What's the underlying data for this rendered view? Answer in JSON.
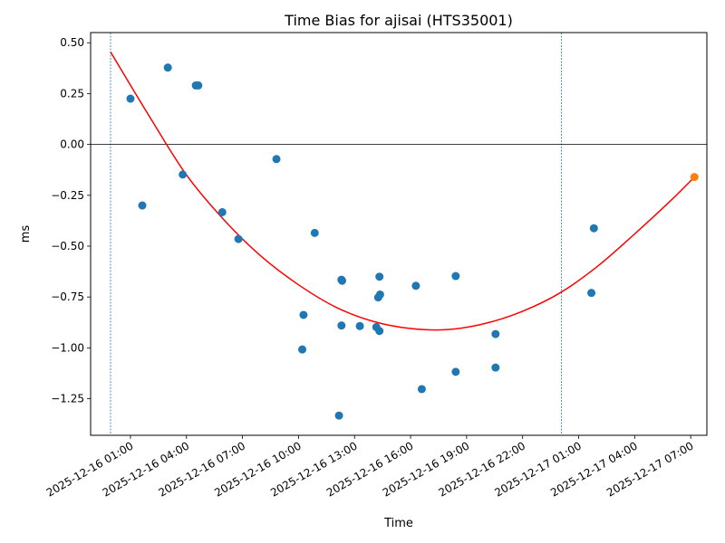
{
  "chart_data": {
    "type": "scatter",
    "title": "Time Bias for ajisai (HTS35001)",
    "xlabel": "Time",
    "ylabel": "ms",
    "x_axis_type": "datetime",
    "x_ticks": [
      "2025-12-16 01:00",
      "2025-12-16 04:00",
      "2025-12-16 07:00",
      "2025-12-16 10:00",
      "2025-12-16 13:00",
      "2025-12-16 16:00",
      "2025-12-16 19:00",
      "2025-12-16 22:00",
      "2025-12-17 01:00",
      "2025-12-17 04:00",
      "2025-12-17 07:00"
    ],
    "y_ticks": [
      0.5,
      0.25,
      0.0,
      -0.25,
      -0.5,
      -0.75,
      -1.0,
      -1.25
    ],
    "y_tick_labels": [
      "0.50",
      "0.25",
      "0.00",
      "−0.25",
      "−0.50",
      "−0.75",
      "−1.00",
      "−1.25"
    ],
    "xlim": [
      "2025-12-15 22:52",
      "2025-12-17 07:52"
    ],
    "ylim": [
      -1.43,
      0.55
    ],
    "grid": false,
    "series": [
      {
        "color": "#1f77b4",
        "points": [
          {
            "x": "2025-12-16 01:00",
            "y": 0.225
          },
          {
            "x": "2025-12-16 01:38",
            "y": -0.3
          },
          {
            "x": "2025-12-16 03:00",
            "y": 0.378
          },
          {
            "x": "2025-12-16 03:48",
            "y": -0.148
          },
          {
            "x": "2025-12-16 04:30",
            "y": 0.29
          },
          {
            "x": "2025-12-16 04:38",
            "y": 0.29
          },
          {
            "x": "2025-12-16 05:55",
            "y": -0.333
          },
          {
            "x": "2025-12-16 06:47",
            "y": -0.465
          },
          {
            "x": "2025-12-16 08:49",
            "y": -0.072
          },
          {
            "x": "2025-12-16 10:12",
            "y": -1.008
          },
          {
            "x": "2025-12-16 10:16",
            "y": -0.838
          },
          {
            "x": "2025-12-16 10:52",
            "y": -0.435
          },
          {
            "x": "2025-12-16 12:10",
            "y": -1.333
          },
          {
            "x": "2025-12-16 12:18",
            "y": -0.665
          },
          {
            "x": "2025-12-16 12:20",
            "y": -0.67
          },
          {
            "x": "2025-12-16 12:18",
            "y": -0.89
          },
          {
            "x": "2025-12-16 13:17",
            "y": -0.893
          },
          {
            "x": "2025-12-16 14:10",
            "y": -0.898
          },
          {
            "x": "2025-12-16 14:20",
            "y": -0.917
          },
          {
            "x": "2025-12-16 14:16",
            "y": -0.752
          },
          {
            "x": "2025-12-16 14:22",
            "y": -0.738
          },
          {
            "x": "2025-12-16 14:20",
            "y": -0.65
          },
          {
            "x": "2025-12-16 16:17",
            "y": -0.695
          },
          {
            "x": "2025-12-16 16:36",
            "y": -1.203
          },
          {
            "x": "2025-12-16 18:25",
            "y": -0.647
          },
          {
            "x": "2025-12-16 18:25",
            "y": -1.118
          },
          {
            "x": "2025-12-16 20:33",
            "y": -0.932
          },
          {
            "x": "2025-12-16 20:33",
            "y": -1.097
          },
          {
            "x": "2025-12-17 01:41",
            "y": -0.73
          },
          {
            "x": "2025-12-17 01:49",
            "y": -0.412
          }
        ]
      },
      {
        "color": "#ff7f0e",
        "points": [
          {
            "x": "2025-12-17 07:12",
            "y": -0.16
          }
        ]
      }
    ],
    "fit_curve": {
      "color": "#ff0000",
      "points": [
        {
          "x": "2025-12-15 23:56",
          "y": 0.455
        },
        {
          "x": "2025-12-16 02:00",
          "y": 0.14
        },
        {
          "x": "2025-12-16 04:00",
          "y": -0.15
        },
        {
          "x": "2025-12-16 06:00",
          "y": -0.37
        },
        {
          "x": "2025-12-16 08:00",
          "y": -0.55
        },
        {
          "x": "2025-12-16 10:00",
          "y": -0.69
        },
        {
          "x": "2025-12-16 12:00",
          "y": -0.8
        },
        {
          "x": "2025-12-16 14:00",
          "y": -0.87
        },
        {
          "x": "2025-12-16 16:00",
          "y": -0.905
        },
        {
          "x": "2025-12-16 18:00",
          "y": -0.91
        },
        {
          "x": "2025-12-16 20:00",
          "y": -0.88
        },
        {
          "x": "2025-12-16 22:00",
          "y": -0.82
        },
        {
          "x": "2025-12-17 00:00",
          "y": -0.73
        },
        {
          "x": "2025-12-17 02:00",
          "y": -0.6
        },
        {
          "x": "2025-12-17 04:00",
          "y": -0.44
        },
        {
          "x": "2025-12-17 06:00",
          "y": -0.27
        },
        {
          "x": "2025-12-17 07:12",
          "y": -0.16
        }
      ]
    },
    "reference_lines": {
      "horizontal": [
        {
          "y": 0.0,
          "color": "#000000"
        }
      ],
      "vertical": [
        {
          "x": "2025-12-15 23:56",
          "color": "#1f77b4",
          "style": "dotted"
        },
        {
          "x": "2025-12-17 00:05",
          "color": "#1f77b4",
          "style": "dotted"
        }
      ]
    }
  }
}
